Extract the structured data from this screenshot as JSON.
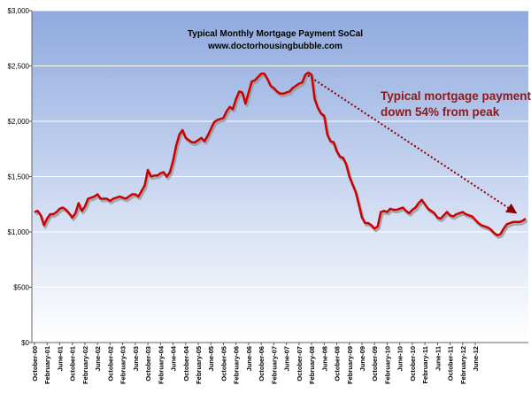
{
  "chart_data": {
    "type": "line",
    "title": "Typical Monthly Mortgage Payment  SoCal",
    "subtitle": "www.doctorhousingbubble.com",
    "annotation": [
      "Typical mortgage payment",
      "down 54% from peak"
    ],
    "ylim": [
      0,
      3000
    ],
    "yticks": [
      "$0",
      "$500",
      "$1,000",
      "$1,500",
      "$2,000",
      "$2,500",
      "$3,000"
    ],
    "yvalues": [
      0,
      500,
      1000,
      1500,
      2000,
      2500,
      3000
    ],
    "xtick_labels": [
      "October-00",
      "February-01",
      "June-01",
      "October-01",
      "February-02",
      "June-02",
      "October-02",
      "February-03",
      "June-03",
      "October-03",
      "February-04",
      "June-04",
      "October-04",
      "February-05",
      "June-05",
      "October-05",
      "February-06",
      "June-06",
      "October-06",
      "February-07",
      "June-07",
      "October-07",
      "February-08",
      "June-08",
      "October-08",
      "February-09",
      "June-09",
      "October-09",
      "February-10",
      "June-10",
      "October-10",
      "February-11",
      "June-11",
      "October-11",
      "February-12",
      "June-12"
    ],
    "grid": true,
    "colors": {
      "line": "#cc0000",
      "shadow": "#999999",
      "arrow": "#8b0000",
      "bg_top": "#8faadf",
      "bg_bottom": "#ffffff"
    },
    "series": [
      {
        "values": [
          1180,
          1190,
          1150,
          1060,
          1120,
          1160,
          1160,
          1180,
          1210,
          1220,
          1200,
          1170,
          1130,
          1170,
          1260,
          1190,
          1230,
          1300,
          1310,
          1320,
          1340,
          1300,
          1300,
          1300,
          1280,
          1300,
          1310,
          1320,
          1310,
          1300,
          1320,
          1340,
          1340,
          1320,
          1370,
          1420,
          1560,
          1500,
          1510,
          1510,
          1530,
          1540,
          1500,
          1540,
          1640,
          1780,
          1880,
          1920,
          1850,
          1830,
          1810,
          1810,
          1830,
          1850,
          1820,
          1870,
          1930,
          1990,
          2010,
          2020,
          2030,
          2090,
          2130,
          2110,
          2200,
          2270,
          2260,
          2160,
          2260,
          2360,
          2370,
          2400,
          2430,
          2430,
          2380,
          2320,
          2300,
          2270,
          2250,
          2250,
          2260,
          2270,
          2300,
          2320,
          2340,
          2350,
          2420,
          2440,
          2420,
          2200,
          2120,
          2070,
          2050,
          1880,
          1820,
          1810,
          1730,
          1680,
          1670,
          1610,
          1500,
          1430,
          1360,
          1250,
          1130,
          1080,
          1080,
          1060,
          1030,
          1050,
          1180,
          1190,
          1180,
          1210,
          1200,
          1200,
          1210,
          1220,
          1190,
          1170,
          1200,
          1220,
          1260,
          1290,
          1250,
          1210,
          1190,
          1170,
          1130,
          1120,
          1150,
          1180,
          1150,
          1140,
          1160,
          1170,
          1180,
          1160,
          1150,
          1140,
          1110,
          1080,
          1060,
          1050,
          1040,
          1020,
          990,
          970,
          980,
          1030,
          1070,
          1080,
          1090,
          1090,
          1090,
          1100,
          1120
        ]
      }
    ],
    "arrow": {
      "from": [
        86,
        2430
      ],
      "to": [
        153,
        1170
      ]
    }
  }
}
